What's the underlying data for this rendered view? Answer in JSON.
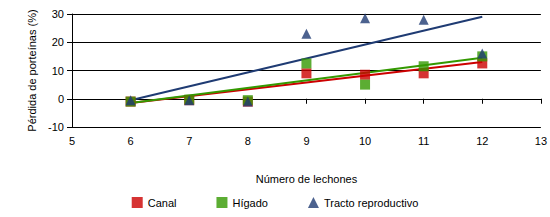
{
  "chart_data": {
    "type": "scatter",
    "x_label": "Número de lechones",
    "y_label": "Pérdida de porteínas (%)",
    "xlim": [
      5,
      13
    ],
    "xticks": [
      5,
      6,
      7,
      8,
      9,
      10,
      11,
      12,
      13
    ],
    "ylim": [
      -10,
      30
    ],
    "yticks": [
      -10,
      0,
      10,
      20,
      30
    ],
    "grid": true,
    "legend": "bottom",
    "series": [
      {
        "name": "Canal",
        "color": "#cc0000",
        "marker": "square",
        "x": [
          6,
          7,
          8,
          9,
          10,
          11,
          12
        ],
        "values": [
          -1,
          -0.5,
          -1,
          9,
          8.5,
          9,
          12.5
        ],
        "trend": {
          "x": [
            6,
            12
          ],
          "values": [
            -1.5,
            13
          ]
        }
      },
      {
        "name": "Hígado",
        "color": "#339900",
        "marker": "square",
        "x": [
          6,
          7,
          8,
          9,
          10,
          11,
          12
        ],
        "values": [
          -1,
          -0.3,
          -0.5,
          12.5,
          5,
          11.5,
          15
        ],
        "trend": {
          "x": [
            6,
            12
          ],
          "values": [
            -1.5,
            14.5
          ]
        }
      },
      {
        "name": "Tracto reproductivo",
        "color": "#1f3b73",
        "marker": "triangle",
        "x": [
          6,
          7,
          8,
          9,
          10,
          11,
          12
        ],
        "values": [
          -0.5,
          -0.5,
          -1,
          23,
          28.5,
          28,
          16
        ],
        "trend": {
          "x": [
            6,
            12
          ],
          "values": [
            -0.5,
            29
          ]
        }
      }
    ]
  }
}
